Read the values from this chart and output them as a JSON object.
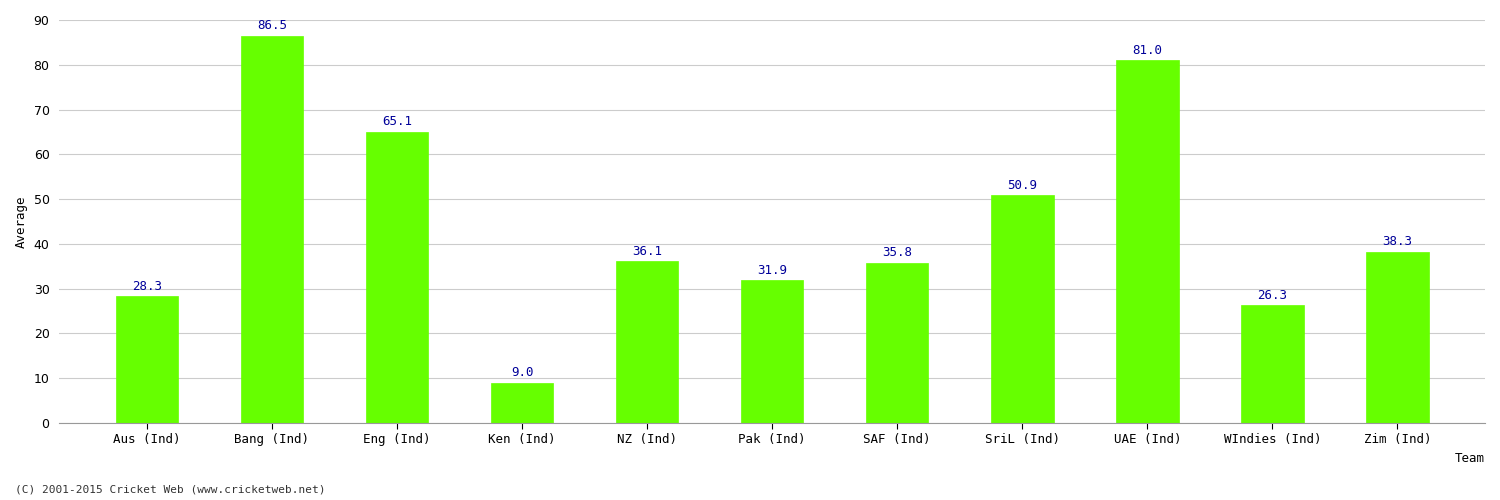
{
  "categories": [
    "Aus (Ind)",
    "Bang (Ind)",
    "Eng (Ind)",
    "Ken (Ind)",
    "NZ (Ind)",
    "Pak (Ind)",
    "SAF (Ind)",
    "SriL (Ind)",
    "UAE (Ind)",
    "WIndies (Ind)",
    "Zim (Ind)"
  ],
  "values": [
    28.3,
    86.5,
    65.1,
    9.0,
    36.1,
    31.9,
    35.8,
    50.9,
    81.0,
    26.3,
    38.3
  ],
  "bar_color": "#66ff00",
  "bar_edge_color": "#66ff00",
  "label_color": "#000099",
  "xlabel": "Team",
  "ylabel": "Average",
  "ylim": [
    0,
    90
  ],
  "yticks": [
    0,
    10,
    20,
    30,
    40,
    50,
    60,
    70,
    80,
    90
  ],
  "background_color": "#ffffff",
  "grid_color": "#cccccc",
  "footer_text": "(C) 2001-2015 Cricket Web (www.cricketweb.net)",
  "label_fontsize": 9,
  "axis_label_fontsize": 9,
  "tick_fontsize": 9,
  "footer_fontsize": 8,
  "bar_width": 0.5
}
